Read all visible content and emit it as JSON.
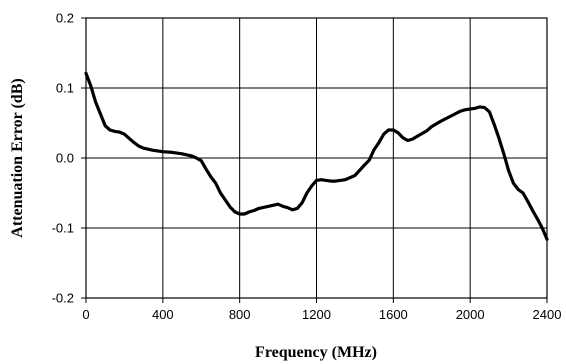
{
  "chart_data": {
    "type": "line",
    "title": "",
    "xlabel": "Frequency (MHz)",
    "ylabel": "Attenuation Error (dB)",
    "xlim": [
      0,
      2400
    ],
    "ylim": [
      -0.2,
      0.2
    ],
    "grid": true,
    "x_ticks": [
      0,
      400,
      800,
      1200,
      1600,
      2000,
      2400
    ],
    "x_tick_labels": [
      "0",
      "400",
      "800",
      "1200",
      "1600",
      "2000",
      "2400"
    ],
    "y_ticks": [
      -0.2,
      -0.1,
      0.0,
      0.1,
      0.2
    ],
    "y_tick_labels": [
      "-0.2",
      "-0.1",
      "0.0",
      "0.1",
      "0.2"
    ],
    "series": [
      {
        "x": [
          0,
          25,
          50,
          75,
          100,
          125,
          150,
          175,
          200,
          225,
          250,
          275,
          300,
          350,
          400,
          450,
          500,
          550,
          575,
          600,
          625,
          650,
          675,
          700,
          725,
          750,
          775,
          800,
          825,
          850,
          875,
          900,
          950,
          1000,
          1025,
          1050,
          1075,
          1100,
          1125,
          1150,
          1175,
          1200,
          1225,
          1250,
          1275,
          1300,
          1350,
          1400,
          1450,
          1475,
          1500,
          1525,
          1550,
          1575,
          1600,
          1625,
          1650,
          1675,
          1700,
          1725,
          1750,
          1775,
          1800,
          1850,
          1900,
          1950,
          1975,
          2000,
          2025,
          2050,
          2075,
          2100,
          2125,
          2150,
          2175,
          2200,
          2225,
          2250,
          2275,
          2300,
          2325,
          2350,
          2375,
          2400
        ],
        "values": [
          0.121,
          0.103,
          0.08,
          0.063,
          0.046,
          0.04,
          0.038,
          0.037,
          0.034,
          0.028,
          0.022,
          0.017,
          0.014,
          0.011,
          0.009,
          0.008,
          0.006,
          0.003,
          0.0,
          -0.004,
          -0.016,
          -0.027,
          -0.036,
          -0.05,
          -0.06,
          -0.07,
          -0.077,
          -0.08,
          -0.08,
          -0.077,
          -0.075,
          -0.072,
          -0.069,
          -0.066,
          -0.069,
          -0.071,
          -0.074,
          -0.072,
          -0.064,
          -0.05,
          -0.04,
          -0.032,
          -0.031,
          -0.032,
          -0.033,
          -0.033,
          -0.031,
          -0.025,
          -0.01,
          -0.003,
          0.012,
          0.022,
          0.034,
          0.04,
          0.04,
          0.036,
          0.029,
          0.025,
          0.027,
          0.031,
          0.035,
          0.039,
          0.045,
          0.053,
          0.06,
          0.067,
          0.069,
          0.07,
          0.071,
          0.073,
          0.072,
          0.066,
          0.048,
          0.028,
          0.006,
          -0.018,
          -0.036,
          -0.045,
          -0.05,
          -0.062,
          -0.075,
          -0.087,
          -0.1,
          -0.116
        ]
      }
    ]
  }
}
